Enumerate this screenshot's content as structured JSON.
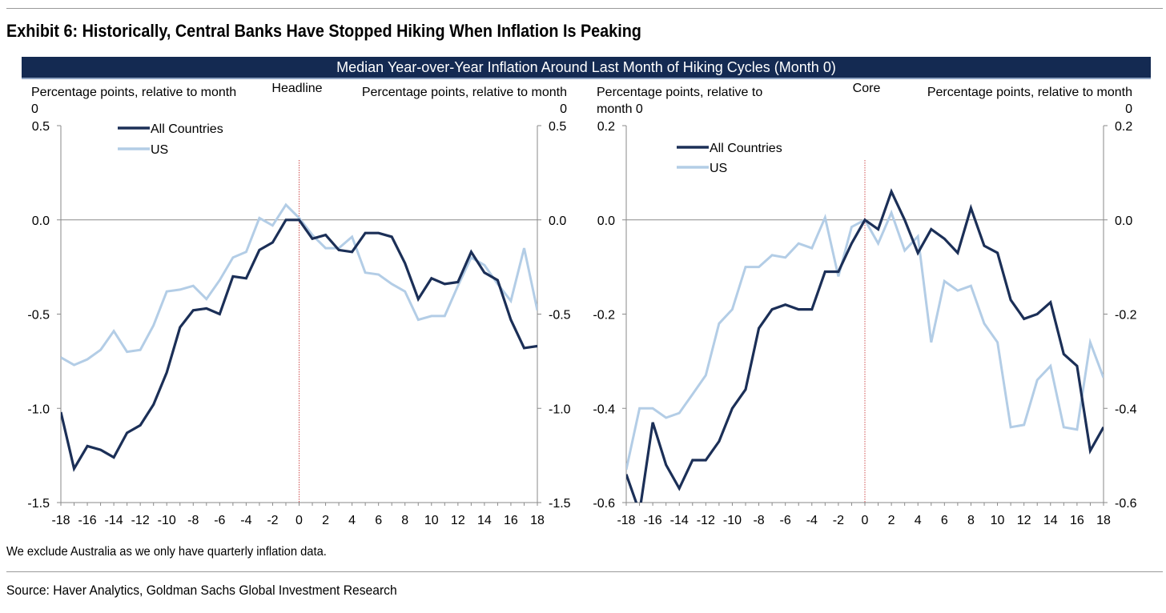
{
  "exhibit_title": "Exhibit 6: Historically, Central Banks Have Stopped Hiking When Inflation Is Peaking",
  "banner": "Median Year-over-Year Inflation Around Last Month of Hiking Cycles (Month 0)",
  "footnote": "We exclude Australia as we only have quarterly inflation data.",
  "source": "Source: Haver Analytics, Goldman Sachs Global Investment Research",
  "colors": {
    "all_countries": "#1b2f57",
    "us": "#b3cde6",
    "zero_line": "#8a8a8a",
    "month0_line": "#d05050",
    "banner": "#142a52"
  },
  "chart_data": [
    {
      "type": "line",
      "title": "Headline",
      "ylabel_left": [
        "Percentage points, relative to month",
        "0"
      ],
      "ylabel_right": [
        "Percentage points, relative to month",
        "0"
      ],
      "ylim": [
        -1.5,
        0.5
      ],
      "yticks": [
        "0.5",
        "0.0",
        "-0.5",
        "-1.0",
        "-1.5"
      ],
      "ytick_values": [
        0.5,
        0.0,
        -0.5,
        -1.0,
        -1.5
      ],
      "xlim": [
        -18,
        18
      ],
      "xticks": [
        -18,
        -16,
        -14,
        -12,
        -10,
        -8,
        -6,
        -4,
        -2,
        0,
        2,
        4,
        6,
        8,
        10,
        12,
        14,
        16,
        18
      ],
      "x": [
        -18,
        -17,
        -16,
        -15,
        -14,
        -13,
        -12,
        -11,
        -10,
        -9,
        -8,
        -7,
        -6,
        -5,
        -4,
        -3,
        -2,
        -1,
        0,
        1,
        2,
        3,
        4,
        5,
        6,
        7,
        8,
        9,
        10,
        11,
        12,
        13,
        14,
        15,
        16,
        17,
        18
      ],
      "legend_position": "top-left",
      "series": [
        {
          "name": "All Countries",
          "key": "all_countries",
          "values": [
            -1.02,
            -1.32,
            -1.2,
            -1.22,
            -1.26,
            -1.13,
            -1.09,
            -0.98,
            -0.81,
            -0.57,
            -0.48,
            -0.47,
            -0.5,
            -0.3,
            -0.31,
            -0.16,
            -0.12,
            0.0,
            0.0,
            -0.1,
            -0.08,
            -0.16,
            -0.17,
            -0.07,
            -0.07,
            -0.09,
            -0.23,
            -0.42,
            -0.31,
            -0.34,
            -0.33,
            -0.17,
            -0.28,
            -0.32,
            -0.53,
            -0.68,
            -0.67
          ]
        },
        {
          "name": "US",
          "key": "us",
          "values": [
            -0.73,
            -0.77,
            -0.74,
            -0.69,
            -0.59,
            -0.7,
            -0.69,
            -0.56,
            -0.38,
            -0.37,
            -0.35,
            -0.42,
            -0.32,
            -0.2,
            -0.17,
            0.01,
            -0.03,
            0.08,
            0.01,
            -0.08,
            -0.15,
            -0.15,
            -0.09,
            -0.28,
            -0.29,
            -0.34,
            -0.38,
            -0.53,
            -0.51,
            -0.51,
            -0.35,
            -0.2,
            -0.24,
            -0.34,
            -0.43,
            -0.15,
            -0.48
          ]
        }
      ]
    },
    {
      "type": "line",
      "title": "Core",
      "ylabel_left": [
        "Percentage points, relative to",
        "month 0"
      ],
      "ylabel_right": [
        "Percentage points, relative to month",
        "0"
      ],
      "ylim": [
        -0.6,
        0.2
      ],
      "yticks": [
        "0.2",
        "0.0",
        "-0.2",
        "-0.4",
        "-0.6"
      ],
      "ytick_values": [
        0.2,
        0.0,
        -0.2,
        -0.4,
        -0.6
      ],
      "xlim": [
        -18,
        18
      ],
      "xticks": [
        -18,
        -16,
        -14,
        -12,
        -10,
        -8,
        -6,
        -4,
        -2,
        0,
        2,
        4,
        6,
        8,
        10,
        12,
        14,
        16,
        18
      ],
      "x": [
        -18,
        -17,
        -16,
        -15,
        -14,
        -13,
        -12,
        -11,
        -10,
        -9,
        -8,
        -7,
        -6,
        -5,
        -4,
        -3,
        -2,
        -1,
        0,
        1,
        2,
        3,
        4,
        5,
        6,
        7,
        8,
        9,
        10,
        11,
        12,
        13,
        14,
        15,
        16,
        17,
        18
      ],
      "legend_position": "top-left",
      "series": [
        {
          "name": "All Countries",
          "key": "all_countries",
          "values": [
            -0.54,
            -0.62,
            -0.43,
            -0.52,
            -0.57,
            -0.51,
            -0.51,
            -0.47,
            -0.4,
            -0.36,
            -0.23,
            -0.19,
            -0.18,
            -0.19,
            -0.19,
            -0.11,
            -0.11,
            -0.05,
            0.0,
            -0.02,
            0.06,
            0.0,
            -0.07,
            -0.02,
            -0.04,
            -0.07,
            0.025,
            -0.055,
            -0.07,
            -0.17,
            -0.21,
            -0.2,
            -0.175,
            -0.285,
            -0.31,
            -0.49,
            -0.44
          ]
        },
        {
          "name": "US",
          "key": "us",
          "values": [
            -0.53,
            -0.4,
            -0.4,
            -0.42,
            -0.41,
            -0.37,
            -0.33,
            -0.22,
            -0.19,
            -0.1,
            -0.1,
            -0.075,
            -0.08,
            -0.05,
            -0.06,
            0.005,
            -0.12,
            -0.015,
            0.0,
            -0.05,
            0.015,
            -0.065,
            -0.035,
            -0.26,
            -0.13,
            -0.15,
            -0.14,
            -0.22,
            -0.26,
            -0.44,
            -0.435,
            -0.34,
            -0.31,
            -0.44,
            -0.445,
            -0.26,
            -0.335
          ]
        }
      ]
    }
  ]
}
